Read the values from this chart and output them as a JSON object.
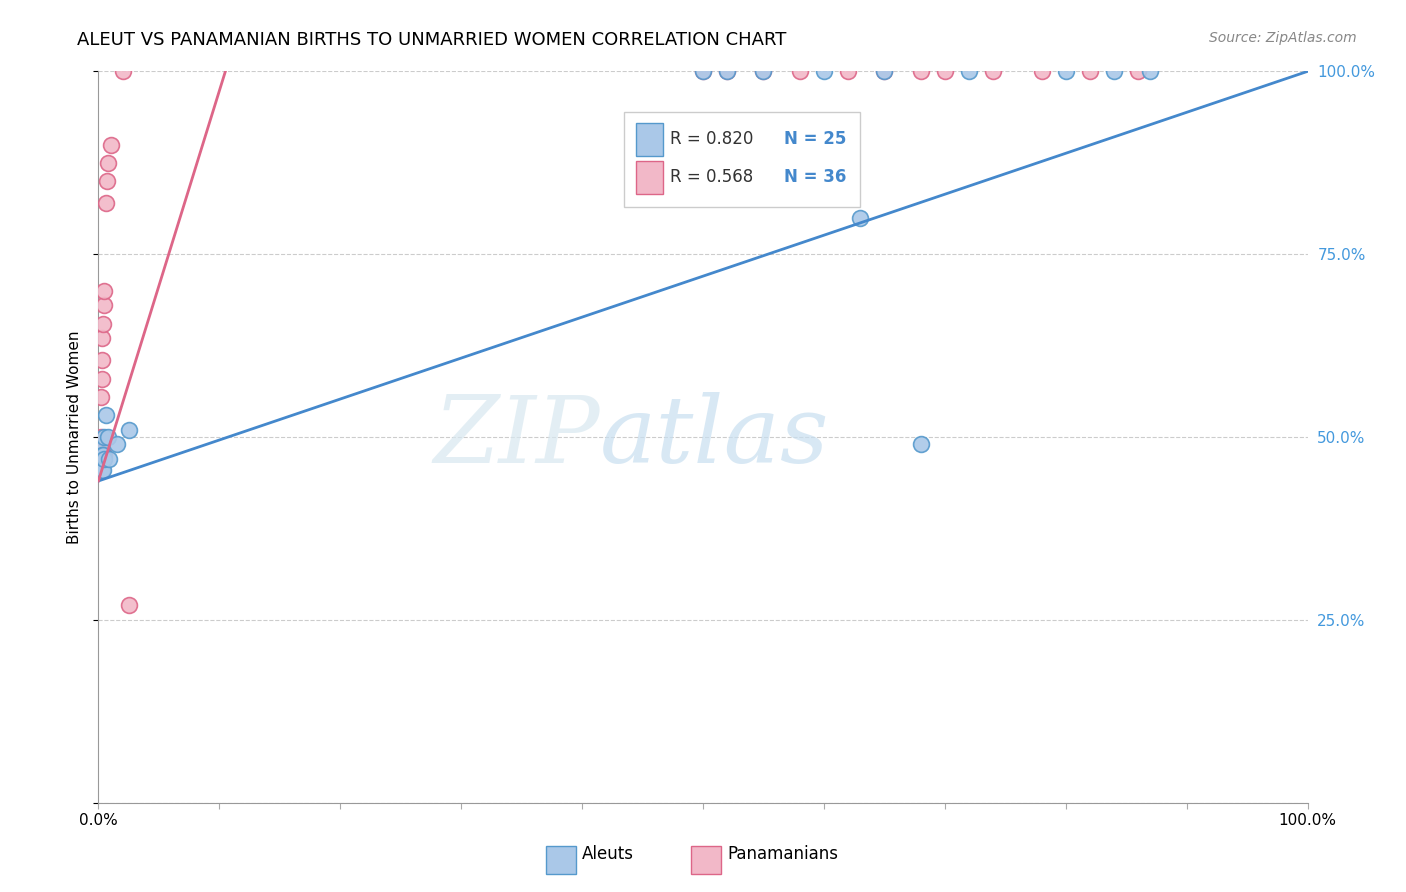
{
  "title": "ALEUT VS PANAMANIAN BIRTHS TO UNMARRIED WOMEN CORRELATION CHART",
  "source": "Source: ZipAtlas.com",
  "ylabel": "Births to Unmarried Women",
  "legend_r_aleut": "R = 0.820",
  "legend_n_aleut": "N = 25",
  "legend_r_pan": "R = 0.568",
  "legend_n_pan": "N = 36",
  "aleut_color": "#aac8e8",
  "pan_color": "#f2b8c8",
  "aleut_edge_color": "#5599cc",
  "pan_edge_color": "#dd6688",
  "aleut_line_color": "#4488cc",
  "pan_line_color": "#dd6688",
  "watermark_zip": "ZIP",
  "watermark_atlas": "atlas",
  "bottom_legend_aleut": "Aleuts",
  "bottom_legend_pan": "Panamanians",
  "aleut_x": [
    0.002,
    0.002,
    0.002,
    0.003,
    0.003,
    0.004,
    0.004,
    0.005,
    0.005,
    0.006,
    0.008,
    0.009,
    0.015,
    0.025,
    0.5,
    0.52,
    0.55,
    0.6,
    0.63,
    0.65,
    0.68,
    0.72,
    0.8,
    0.84,
    0.87
  ],
  "aleut_y": [
    0.46,
    0.47,
    0.485,
    0.455,
    0.475,
    0.455,
    0.475,
    0.47,
    0.5,
    0.53,
    0.5,
    0.47,
    0.49,
    0.51,
    1.0,
    1.0,
    1.0,
    1.0,
    0.8,
    1.0,
    0.49,
    1.0,
    1.0,
    1.0,
    1.0
  ],
  "pan_x": [
    0.001,
    0.001,
    0.001,
    0.001,
    0.001,
    0.002,
    0.002,
    0.002,
    0.002,
    0.003,
    0.003,
    0.003,
    0.003,
    0.004,
    0.004,
    0.005,
    0.005,
    0.005,
    0.006,
    0.007,
    0.008,
    0.01,
    0.02,
    0.025,
    0.5,
    0.52,
    0.55,
    0.58,
    0.62,
    0.65,
    0.68,
    0.7,
    0.74,
    0.78,
    0.82,
    0.86
  ],
  "pan_y": [
    0.455,
    0.465,
    0.475,
    0.485,
    0.495,
    0.455,
    0.465,
    0.555,
    0.5,
    0.58,
    0.605,
    0.635,
    0.47,
    0.655,
    0.475,
    0.68,
    0.7,
    0.475,
    0.82,
    0.85,
    0.875,
    0.9,
    1.0,
    0.27,
    1.0,
    1.0,
    1.0,
    1.0,
    1.0,
    1.0,
    1.0,
    1.0,
    1.0,
    1.0,
    1.0,
    1.0
  ],
  "aleut_line_x0": 0.0,
  "aleut_line_y0": 0.44,
  "aleut_line_x1": 1.0,
  "aleut_line_y1": 1.0,
  "pan_line_x0": 0.0,
  "pan_line_y0": 0.44,
  "pan_line_x1": 0.105,
  "pan_line_y1": 1.0,
  "xlim": [
    0.0,
    1.0
  ],
  "ylim": [
    0.0,
    1.0
  ],
  "xticks": [
    0.0,
    0.1,
    0.2,
    0.3,
    0.4,
    0.5,
    0.6,
    0.7,
    0.8,
    0.9,
    1.0
  ],
  "yticks": [
    0.0,
    0.25,
    0.5,
    0.75,
    1.0
  ],
  "xticklabels": [
    "0.0%",
    "",
    "",
    "",
    "",
    "",
    "",
    "",
    "",
    "",
    "100.0%"
  ],
  "yticklabels": [
    "25.0%",
    "50.0%",
    "75.0%",
    "100.0%"
  ],
  "title_fontsize": 13,
  "source_fontsize": 10,
  "tick_fontsize": 11,
  "ylabel_fontsize": 11
}
